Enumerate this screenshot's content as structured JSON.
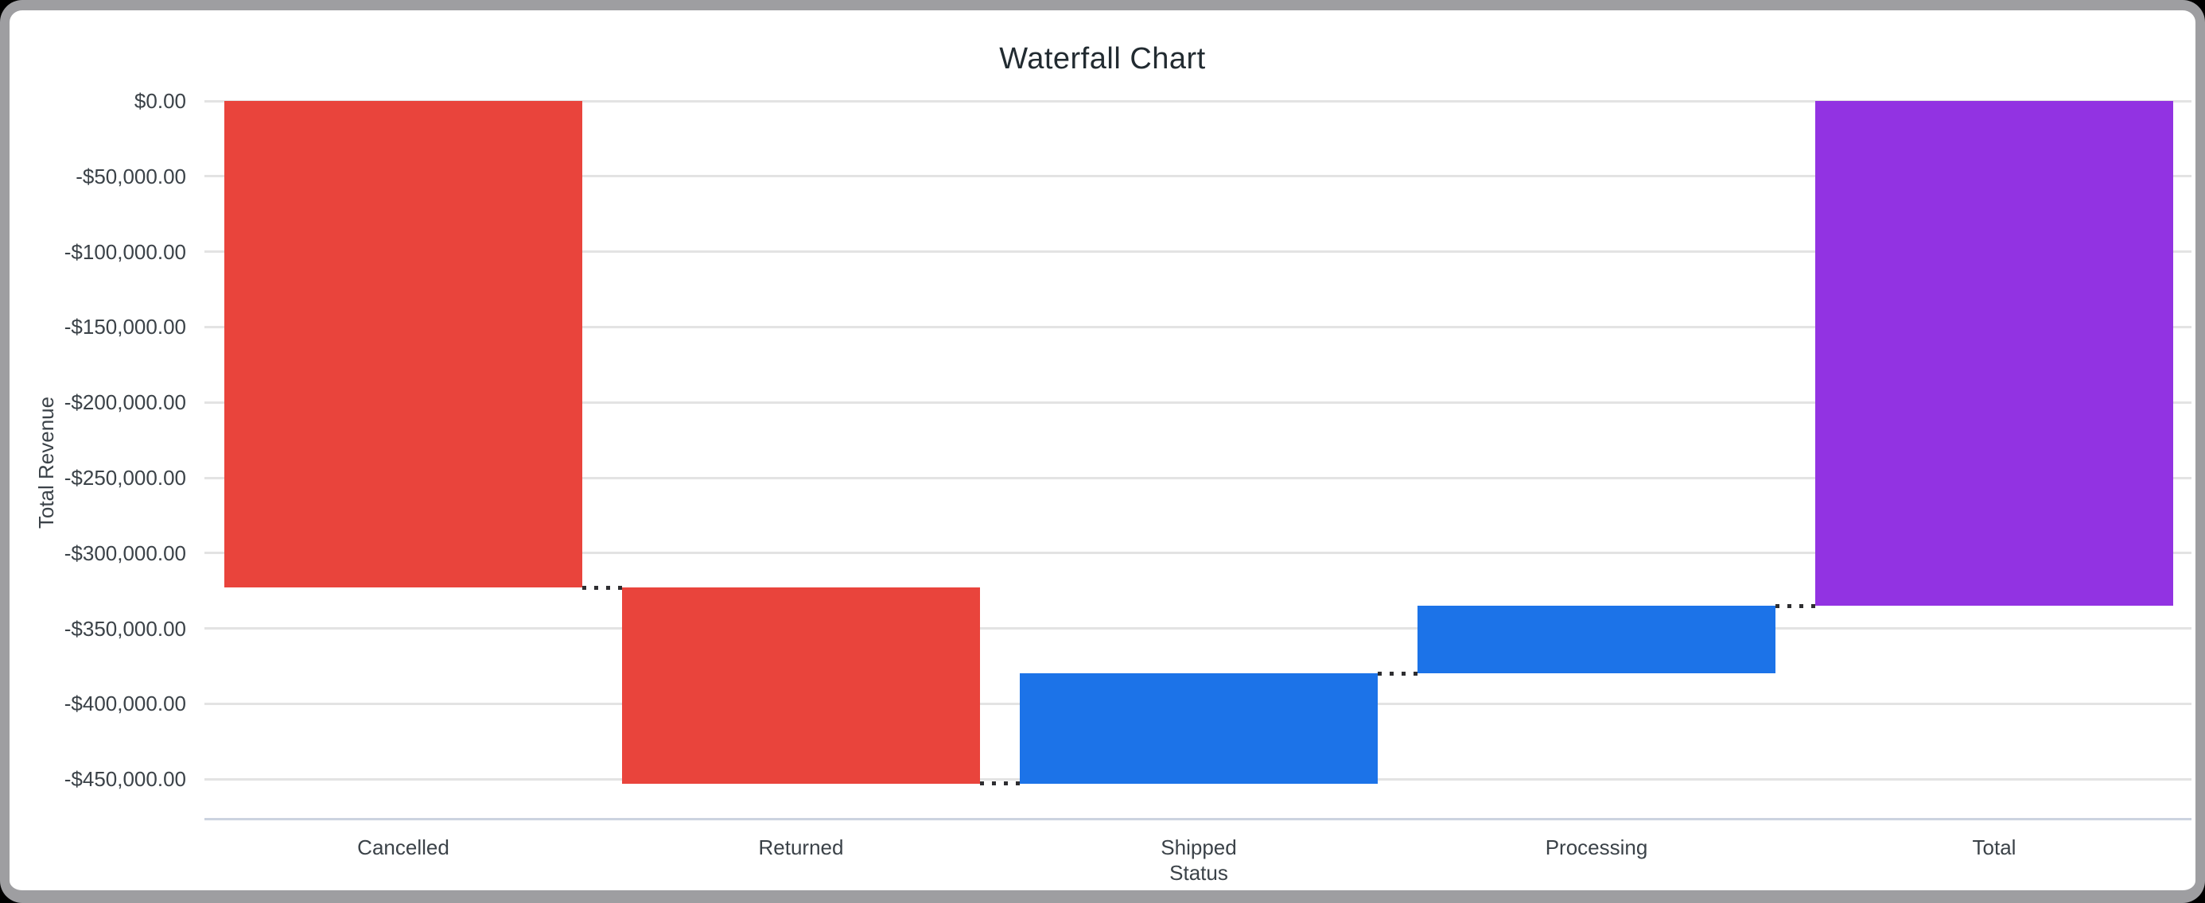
{
  "chart_data": {
    "type": "bar",
    "variant": "waterfall",
    "title": "Waterfall Chart",
    "xlabel": "Status",
    "ylabel": "Total Revenue",
    "categories": [
      "Cancelled",
      "Returned",
      "Shipped",
      "Processing",
      "Total"
    ],
    "bars": [
      {
        "category": "Cancelled",
        "kind": "decrease",
        "delta": -323000,
        "start": 0,
        "end": -323000,
        "color": "#e9443c"
      },
      {
        "category": "Returned",
        "kind": "decrease",
        "delta": -130000,
        "start": -323000,
        "end": -453000,
        "color": "#e9443c"
      },
      {
        "category": "Shipped",
        "kind": "increase",
        "delta": 73000,
        "start": -453000,
        "end": -380000,
        "color": "#1c73e8"
      },
      {
        "category": "Processing",
        "kind": "increase",
        "delta": 45000,
        "start": -380000,
        "end": -335000,
        "color": "#1c73e8"
      },
      {
        "category": "Total",
        "kind": "total",
        "delta": -335000,
        "start": 0,
        "end": -335000,
        "color": "#9233e2"
      }
    ],
    "y_ticks": [
      {
        "value": 0,
        "label": "$0.00"
      },
      {
        "value": -50000,
        "label": "-$50,000.00"
      },
      {
        "value": -100000,
        "label": "-$100,000.00"
      },
      {
        "value": -150000,
        "label": "-$150,000.00"
      },
      {
        "value": -200000,
        "label": "-$200,000.00"
      },
      {
        "value": -250000,
        "label": "-$250,000.00"
      },
      {
        "value": -300000,
        "label": "-$300,000.00"
      },
      {
        "value": -350000,
        "label": "-$350,000.00"
      },
      {
        "value": -400000,
        "label": "-$400,000.00"
      },
      {
        "value": -450000,
        "label": "-$450,000.00"
      }
    ],
    "ylim": [
      -476000,
      0
    ],
    "grid": true,
    "legend": false,
    "connector_style": "dotted"
  },
  "colors": {
    "decrease": "#e9443c",
    "increase": "#1c73e8",
    "total": "#9233e2",
    "grid": "#e3e3e3",
    "axis_line": "#ccd3e0",
    "connector": "#2e2e31",
    "label_text": "#3b4248",
    "title_text": "#222b31",
    "window_border": "#9e9ea1",
    "page_background": "#000000",
    "chart_background": "#ffffff"
  }
}
